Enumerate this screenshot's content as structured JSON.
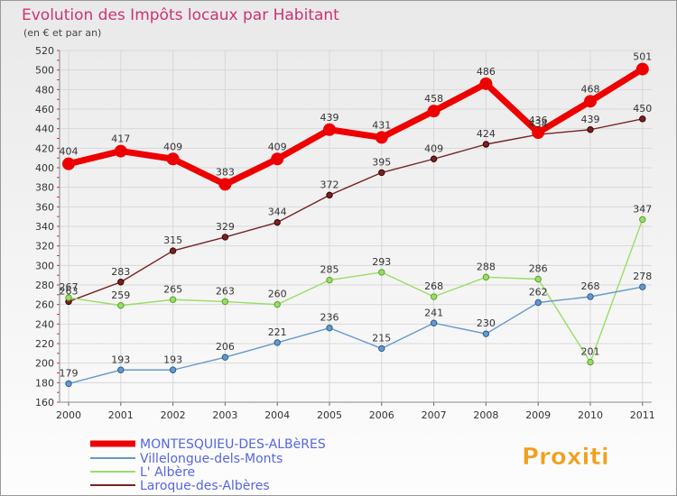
{
  "title": "Evolution des Impôts locaux par Habitant",
  "subtitle": "(en € et par an)",
  "logo_text": "Proxiti",
  "colors": {
    "title": "#cc3377",
    "legend_text": "#5566dd",
    "background_top": "#e9e9e9",
    "background_bottom": "#fdfdfd"
  },
  "chart_data": {
    "type": "line",
    "title": "Evolution des Impôts locaux par Habitant",
    "subtitle": "(en € et par an)",
    "x": [
      "2000",
      "2001",
      "2002",
      "2003",
      "2004",
      "2005",
      "2006",
      "2007",
      "2008",
      "2009",
      "2010",
      "2011"
    ],
    "ylim": [
      160,
      520
    ],
    "ytick_step": 20,
    "grid": true,
    "legend_position": "bottom-left",
    "series": [
      {
        "name": "MONTESQUIEU-DES-ALBèRES",
        "color": "#ee0000",
        "values": [
          404,
          417,
          409,
          383,
          409,
          439,
          431,
          458,
          486,
          436,
          468,
          501
        ],
        "labels": [
          "404",
          "417",
          "409",
          "383",
          "409",
          "439",
          "431",
          "458",
          "486",
          "436",
          "468",
          "501"
        ]
      },
      {
        "name": "Villelongue-dels-Monts",
        "color": "#6699cc",
        "values": [
          179,
          193,
          193,
          206,
          221,
          236,
          215,
          241,
          230,
          262,
          268,
          278
        ],
        "labels": [
          "179",
          "193",
          "193",
          "206",
          "221",
          "236",
          "215",
          "241",
          "230",
          "262",
          "268",
          "278"
        ]
      },
      {
        "name": "L' Albère",
        "color": "#99dd66",
        "values": [
          267,
          259,
          265,
          263,
          260,
          285,
          293,
          268,
          288,
          286,
          201,
          347
        ],
        "labels": [
          "267",
          "259",
          "265",
          "263",
          "260",
          "285",
          "293",
          "268",
          "288",
          "286",
          "201",
          "347"
        ]
      },
      {
        "name": "Laroque-des-Albères",
        "color": "#772222",
        "values": [
          263,
          283,
          315,
          329,
          344,
          372,
          395,
          409,
          424,
          434,
          439,
          450
        ],
        "labels": [
          "263",
          "283",
          "315",
          "329",
          "344",
          "372",
          "395",
          "409",
          "424",
          "434",
          "439",
          "450"
        ]
      }
    ]
  }
}
